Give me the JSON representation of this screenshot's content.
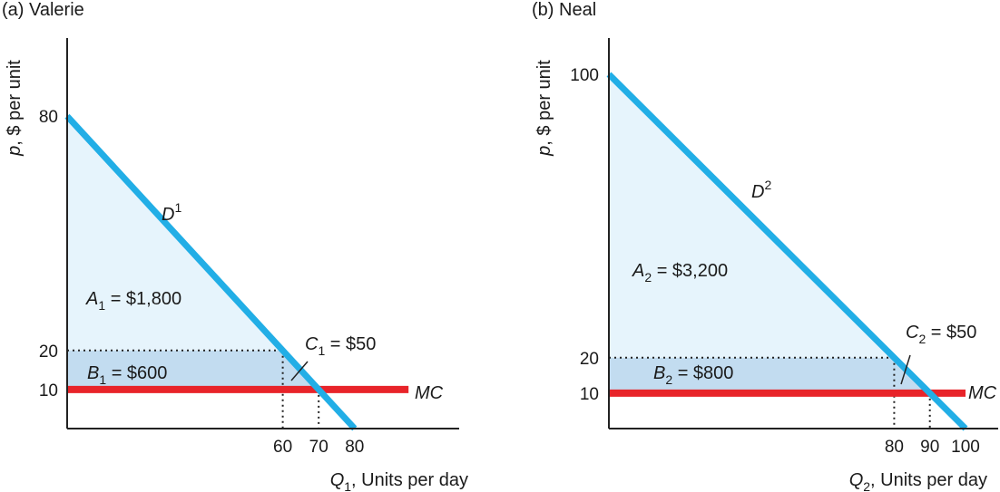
{
  "chart_data": [
    {
      "type": "line",
      "title": "(a) Valerie",
      "ylabel": "p, $ per unit",
      "xlabel": "Q1, Units per day",
      "xlabel_parts": {
        "var": "Q",
        "sub": "1",
        "rest": ", Units per day"
      },
      "ylabel_parts": {
        "var": "p",
        "rest": ", $ per unit"
      },
      "xlim": [
        0,
        100
      ],
      "ylim": [
        0,
        100
      ],
      "x_ticks": [
        60,
        70,
        80
      ],
      "y_ticks": [
        10,
        20,
        80
      ],
      "series": [
        {
          "name": "D1",
          "color": "#22aee6",
          "points": [
            [
              0,
              80
            ],
            [
              80,
              0
            ]
          ]
        },
        {
          "name": "MC",
          "color": "#e8242a",
          "points": [
            [
              0,
              10
            ],
            [
              95,
              10
            ]
          ]
        }
      ],
      "guide_lines": [
        {
          "from": [
            0,
            20
          ],
          "to": [
            60,
            20
          ]
        },
        {
          "from": [
            60,
            20
          ],
          "to": [
            60,
            0
          ]
        },
        {
          "from": [
            70,
            10
          ],
          "to": [
            70,
            0
          ]
        }
      ],
      "areas": [
        {
          "label": "A1 = $1,800",
          "color": "#e6f4fc",
          "polygon": [
            [
              0,
              80
            ],
            [
              0,
              20
            ],
            [
              60,
              20
            ]
          ]
        },
        {
          "label": "B1 = $600",
          "color": "#c2dcf0",
          "polygon": [
            [
              0,
              20
            ],
            [
              0,
              10
            ],
            [
              70,
              10
            ],
            [
              60,
              20
            ]
          ]
        },
        {
          "label": "C1 = $50",
          "color": "#c2dcf0",
          "polygon": [
            [
              60,
              20
            ],
            [
              70,
              10
            ],
            [
              60,
              10
            ]
          ]
        }
      ],
      "annotations": {
        "demand": {
          "var": "D",
          "sup": "1"
        },
        "mc": "MC",
        "A": {
          "var": "A",
          "sub": "1",
          "rest": " = $1,800"
        },
        "B": {
          "var": "B",
          "sub": "1",
          "rest": " = $600"
        },
        "C": {
          "var": "C",
          "sub": "1",
          "rest": " = $50"
        }
      }
    },
    {
      "type": "line",
      "title": "(b) Neal",
      "ylabel": "p, $ per unit",
      "xlabel": "Q2, Units per day",
      "xlabel_parts": {
        "var": "Q",
        "sub": "2",
        "rest": ", Units per day"
      },
      "ylabel_parts": {
        "var": "p",
        "rest": ", $ per unit"
      },
      "xlim": [
        0,
        100
      ],
      "ylim": [
        0,
        100
      ],
      "x_ticks": [
        80,
        90,
        100
      ],
      "y_ticks": [
        10,
        20,
        100
      ],
      "series": [
        {
          "name": "D2",
          "color": "#22aee6",
          "points": [
            [
              0,
              100
            ],
            [
              100,
              0
            ]
          ]
        },
        {
          "name": "MC",
          "color": "#e8242a",
          "points": [
            [
              0,
              10
            ],
            [
              100,
              10
            ]
          ]
        }
      ],
      "guide_lines": [
        {
          "from": [
            0,
            20
          ],
          "to": [
            80,
            20
          ]
        },
        {
          "from": [
            80,
            20
          ],
          "to": [
            80,
            0
          ]
        },
        {
          "from": [
            90,
            10
          ],
          "to": [
            90,
            0
          ]
        }
      ],
      "areas": [
        {
          "label": "A2 = $3,200",
          "color": "#e6f4fc",
          "polygon": [
            [
              0,
              100
            ],
            [
              0,
              20
            ],
            [
              80,
              20
            ]
          ]
        },
        {
          "label": "B2 = $800",
          "color": "#c2dcf0",
          "polygon": [
            [
              0,
              20
            ],
            [
              0,
              10
            ],
            [
              90,
              10
            ],
            [
              80,
              20
            ]
          ]
        },
        {
          "label": "C2 = $50",
          "color": "#c2dcf0",
          "polygon": [
            [
              80,
              20
            ],
            [
              90,
              10
            ],
            [
              80,
              10
            ]
          ]
        }
      ],
      "annotations": {
        "demand": {
          "var": "D",
          "sup": "2"
        },
        "mc": "MC",
        "A": {
          "var": "A",
          "sub": "2",
          "rest": " = $3,200"
        },
        "B": {
          "var": "B",
          "sub": "2",
          "rest": " = $800"
        },
        "C": {
          "var": "C",
          "sub": "2",
          "rest": " = $50"
        }
      }
    }
  ]
}
